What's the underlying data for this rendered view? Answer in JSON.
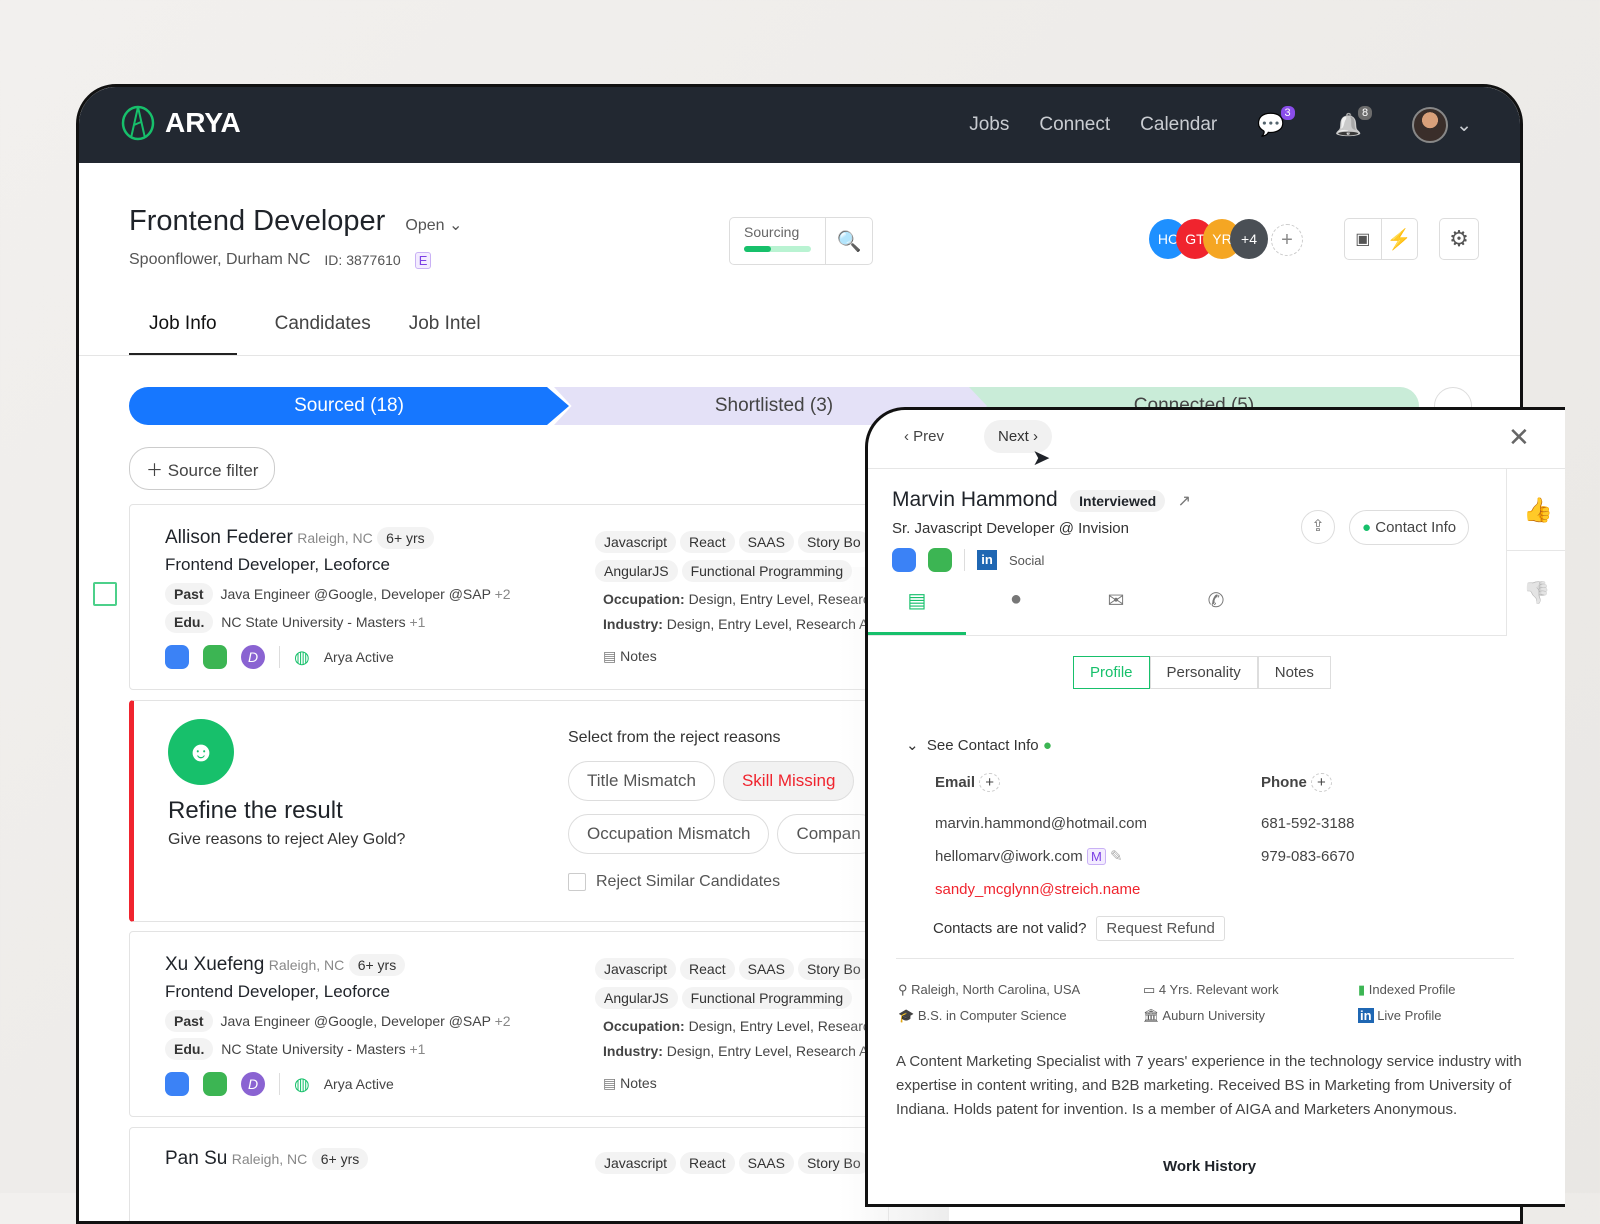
{
  "nav": {
    "brand": "ARYA",
    "links": [
      "Jobs",
      "Connect",
      "Calendar"
    ],
    "messages_count": "3",
    "notifications_count": "8"
  },
  "job": {
    "title": "Frontend Developer",
    "status": "Open",
    "location": "Spoonflower, Durham NC",
    "id": "ID: 3877610",
    "id_badge": "E",
    "sourcing_label": "Sourcing",
    "sourcing_progress": 0.4,
    "team": [
      {
        "initials": "HC",
        "color": "#1e90ff"
      },
      {
        "initials": "GT",
        "color": "#f0242e"
      },
      {
        "initials": "YR",
        "color": "#f5a623"
      },
      {
        "initials": "+4",
        "color": "#4a4f55"
      }
    ]
  },
  "tabs": [
    "Job Info",
    "Candidates",
    "Job Intel"
  ],
  "pipeline": [
    "Sourced (18)",
    "Shortlisted (3)",
    "Connected (5)"
  ],
  "source_filter": "Source filter",
  "candidates": [
    {
      "name": "Allison Federer",
      "loc": "Raleigh, NC",
      "exp": "6+ yrs",
      "title": "Frontend Developer, Leoforce",
      "past_label": "Past",
      "past": "Java Engineer @Google, Developer @SAP",
      "past_more": "+2",
      "edu_label": "Edu.",
      "edu": "NC State University - Masters",
      "edu_more": "+1",
      "status": "Arya Active",
      "skills": [
        "Javascript",
        "React",
        "SAAS",
        "Story Bo",
        "AngularJS",
        "Functional Programming"
      ],
      "occupation_label": "Occupation:",
      "occupation": "Design, Entry Level, Researc",
      "industry_label": "Industry:",
      "industry": "Design, Entry Level, Research A",
      "notes": "Notes",
      "badge_d": "D"
    },
    {
      "name": "Xu Xuefeng",
      "loc": "Raleigh, NC",
      "exp": "6+ yrs",
      "title": "Frontend Developer, Leoforce",
      "past_label": "Past",
      "past": "Java Engineer @Google, Developer @SAP",
      "past_more": "+2",
      "edu_label": "Edu.",
      "edu": "NC State University - Masters",
      "edu_more": "+1",
      "status": "Arya Active",
      "skills": [
        "Javascript",
        "React",
        "SAAS",
        "Story Bo",
        "AngularJS",
        "Functional Programming"
      ],
      "occupation_label": "Occupation:",
      "occupation": "Design, Entry Level, Researc",
      "industry_label": "Industry:",
      "industry": "Design, Entry Level, Research A",
      "notes": "Notes",
      "badge_d": "D"
    },
    {
      "name": "Pan Su",
      "loc": "Raleigh, NC",
      "exp": "6+ yrs",
      "skills": [
        "Javascript",
        "React",
        "SAAS",
        "Story Bo"
      ]
    }
  ],
  "refine": {
    "title": "Refine the result",
    "question": "Give reasons to reject Aley Gold?",
    "prompt": "Select from the reject reasons",
    "reasons": [
      "Title Mismatch",
      "Skill Missing",
      "Occupation Mismatch",
      "Compan"
    ],
    "checkbox": "Reject Similar Candidates"
  },
  "panel": {
    "prev": "Prev",
    "next": "Next",
    "name": "Marvin Hammond",
    "status": "Interviewed",
    "headline": "Sr. Javascript Developer @ Invision",
    "social": "Social",
    "contact_btn": "Contact Info",
    "subtabs": [
      "Profile",
      "Personality",
      "Notes"
    ],
    "see_contact": "See Contact Info",
    "email_label": "Email",
    "phone_label": "Phone",
    "emails": [
      "marvin.hammond@hotmail.com",
      "hellomarv@iwork.com",
      "sandy_mcglynn@streich.name"
    ],
    "email_badge": "M",
    "phones": [
      "681-592-3188",
      "979-083-6670"
    ],
    "invalid": "Contacts are not valid?",
    "refund": "Request Refund",
    "facts": [
      "Raleigh, North Carolina, USA",
      "4 Yrs. Relevant work",
      "Indexed Profile",
      "B.S. in Computer Science",
      "Auburn University",
      "Live Profile"
    ],
    "summary": "A Content Marketing Specialist with 7 years' experience in the technology service industry with expertise in content writing, and B2B marketing. Received BS in Marketing from University of Indiana. Holds patent for invention. Is a member of AIGA and Marketers Anonymous.",
    "work_history": "Work History"
  },
  "colors": {
    "accent": "#17c06b",
    "primary": "#1677ff",
    "nav_bg": "#222831",
    "danger": "#f0242e"
  }
}
